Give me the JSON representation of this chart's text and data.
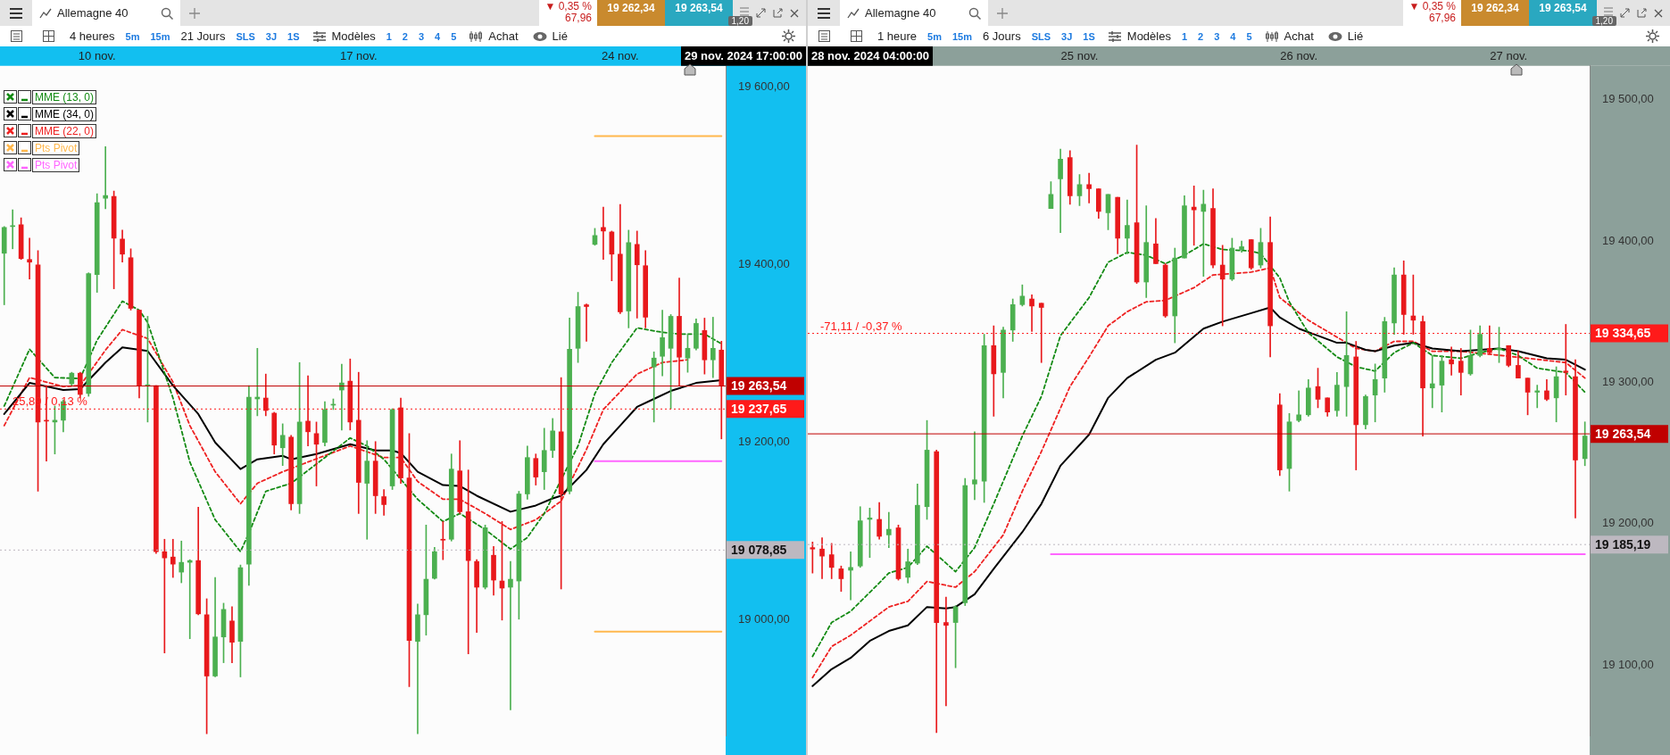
{
  "chart_data": [
    {
      "type": "candlestick",
      "title": "Allemagne 40",
      "categories": [
        null,
        null,
        null,
        null,
        null,
        null,
        null,
        null,
        null,
        null,
        null,
        "10 nov.",
        null,
        null,
        null,
        null,
        null,
        null,
        null,
        null,
        null,
        null,
        null,
        null,
        null,
        null,
        null,
        null,
        null,
        null,
        null,
        null,
        null,
        null,
        null,
        null,
        null,
        null,
        null,
        null,
        null,
        null,
        "17 nov.",
        null,
        null,
        null,
        null,
        null,
        null,
        null,
        null,
        null,
        null,
        null,
        null,
        null,
        null,
        null,
        null,
        null,
        null,
        null,
        null,
        null,
        null,
        null,
        null,
        null,
        null,
        null,
        null,
        null,
        null,
        "24 nov.",
        null,
        null,
        null,
        null,
        null,
        null,
        null,
        null,
        null,
        null,
        null,
        null
      ],
      "ohlc": [
        [
          19413,
          19443,
          19355,
          19442
        ],
        [
          19443,
          19462,
          19418,
          19444
        ],
        [
          19445,
          19453,
          19406,
          19407
        ],
        [
          19406,
          19430,
          19384,
          19403
        ],
        [
          19400,
          19416,
          19145,
          19223
        ],
        [
          19225,
          19264,
          19179,
          19224
        ],
        [
          19223,
          19241,
          19187,
          19225
        ],
        [
          19225,
          19248,
          19212,
          19246
        ],
        [
          19266,
          19279,
          19264,
          19278
        ],
        [
          19278,
          19279,
          19250,
          19254
        ],
        [
          19255,
          19391,
          19252,
          19390
        ],
        [
          19389,
          19480,
          19369,
          19470
        ],
        [
          19475,
          19533,
          19463,
          19478
        ],
        [
          19477,
          19483,
          19373,
          19430
        ],
        [
          19429,
          19439,
          19403,
          19412
        ],
        [
          19408,
          19418,
          19349,
          19351
        ],
        [
          19349,
          19349,
          19250,
          19264
        ],
        [
          19264,
          19342,
          19223,
          19265
        ],
        [
          19264,
          19264,
          19075,
          19077
        ],
        [
          19077,
          19091,
          18963,
          19070
        ],
        [
          19071,
          19091,
          19048,
          19063
        ],
        [
          19054,
          19089,
          19042,
          19065
        ],
        [
          19065,
          19068,
          18979,
          19067
        ],
        [
          19067,
          19127,
          19006,
          19007
        ],
        [
          19006,
          19024,
          18872,
          18937
        ],
        [
          18937,
          19048,
          18936,
          18981
        ],
        [
          18981,
          19019,
          18952,
          19012
        ],
        [
          18999,
          19015,
          18952,
          18975
        ],
        [
          18976,
          19062,
          18936,
          19059
        ],
        [
          19063,
          19264,
          19039,
          19251
        ],
        [
          19249,
          19306,
          19230,
          19251
        ],
        [
          19250,
          19277,
          19230,
          19236
        ],
        [
          19233,
          19234,
          19187,
          19197
        ],
        [
          19194,
          19221,
          19174,
          19208
        ],
        [
          19206,
          19208,
          19124,
          19131
        ],
        [
          19131,
          19290,
          19120,
          19223
        ],
        [
          19224,
          19275,
          19196,
          19212
        ],
        [
          19210,
          19223,
          19151,
          19198
        ],
        [
          19200,
          19246,
          19196,
          19237
        ],
        [
          19242,
          19249,
          19237,
          19243
        ],
        [
          19259,
          19288,
          19214,
          19267
        ],
        [
          19269,
          19294,
          19214,
          19223
        ],
        [
          19225,
          19279,
          19120,
          19155
        ],
        [
          19154,
          19202,
          19091,
          19179
        ],
        [
          19179,
          19201,
          19120,
          19140
        ],
        [
          19139,
          19147,
          19118,
          19130
        ],
        [
          19151,
          19238,
          19147,
          19237
        ],
        [
          19239,
          19250,
          19154,
          19160
        ],
        [
          19160,
          19210,
          18925,
          18977
        ],
        [
          18976,
          19018,
          18872,
          19006
        ],
        [
          19006,
          19107,
          18983,
          19046
        ],
        [
          19047,
          19082,
          19046,
          19077
        ],
        [
          19091,
          19111,
          19068,
          19090
        ],
        [
          19091,
          19187,
          19089,
          19170
        ],
        [
          19168,
          19202,
          19120,
          19122
        ],
        [
          19122,
          19169,
          18962,
          19067
        ],
        [
          19066,
          19068,
          18986,
          19037
        ],
        [
          19037,
          19107,
          19035,
          19104
        ],
        [
          19073,
          19083,
          19028,
          19045
        ],
        [
          19044,
          19111,
          19000,
          19036
        ],
        [
          19037,
          19066,
          18899,
          19046
        ],
        [
          19044,
          19145,
          19001,
          19142
        ],
        [
          19142,
          19196,
          19136,
          19183
        ],
        [
          19182,
          19187,
          19152,
          19161
        ],
        [
          19167,
          19216,
          19147,
          19191
        ],
        [
          19191,
          19227,
          19183,
          19213
        ],
        [
          19212,
          19273,
          19035,
          19142
        ],
        [
          19145,
          19340,
          19142,
          19305
        ],
        [
          19306,
          19369,
          19290,
          19353
        ],
        [
          19355,
          19356,
          19314,
          19353
        ],
        [
          19423,
          19441,
          19422,
          19433
        ],
        [
          19442,
          19465,
          19406,
          19438
        ],
        [
          19437,
          19438,
          19382,
          19412
        ],
        [
          19412,
          19468,
          19345,
          19347
        ],
        [
          19348,
          19439,
          19329,
          19425
        ],
        [
          19423,
          19438,
          19340,
          19400
        ],
        [
          19399,
          19416,
          19329,
          19341
        ],
        [
          19285,
          19302,
          19223,
          19295
        ],
        [
          19297,
          19349,
          19275,
          19318
        ],
        [
          19306,
          19344,
          19238,
          19342
        ],
        [
          19342,
          19385,
          19264,
          19296
        ],
        [
          19295,
          19322,
          19279,
          19306
        ],
        [
          19306,
          19339,
          19304,
          19334
        ],
        [
          19326,
          19340,
          19277,
          19293
        ],
        [
          19293,
          19341,
          19273,
          19306
        ],
        [
          19304,
          19314,
          19204,
          19264
        ]
      ],
      "series": [
        {
          "name": "MME (13, 0)",
          "color": "#138a13",
          "type": "line",
          "line_style": "dashed",
          "values": [
            19241,
            null,
            null,
            19305,
            null,
            null,
            19273,
            null,
            null,
            19272,
            null,
            19315,
            null,
            null,
            19359,
            null,
            19349,
            19335,
            null,
            null,
            19250,
            null,
            19178,
            null,
            null,
            19113,
            null,
            null,
            19077,
            19098,
            null,
            19145,
            null,
            null,
            19154,
            null,
            null,
            null,
            19183,
            null,
            null,
            19205,
            null,
            19196,
            null,
            19181,
            null,
            null,
            null,
            19136,
            null,
            null,
            19111,
            null,
            19120,
            null,
            null,
            19102,
            null,
            null,
            19080,
            null,
            19093,
            null,
            19120,
            null,
            null,
            null,
            19196,
            null,
            19255,
            null,
            19290,
            null,
            null,
            19329,
            null,
            null,
            19324,
            null,
            19322,
            null,
            null,
            19322,
            null,
            19311
          ]
        },
        {
          "name": "MME (34, 0)",
          "color": "#000000",
          "type": "line",
          "line_style": "solid",
          "values": [
            19232,
            null,
            null,
            19267,
            null,
            null,
            null,
            19259,
            null,
            19260,
            null,
            null,
            19290,
            null,
            19307,
            null,
            null,
            19303,
            null,
            null,
            19264,
            null,
            null,
            19232,
            null,
            19200,
            null,
            null,
            19170,
            null,
            19181,
            null,
            null,
            19185,
            19181,
            null,
            null,
            19187,
            null,
            null,
            null,
            19198,
            null,
            null,
            19191,
            null,
            19191,
            19188,
            null,
            19167,
            null,
            null,
            19152,
            null,
            19151,
            null,
            19140,
            null,
            null,
            null,
            19122,
            null,
            null,
            19129,
            null,
            19137,
            19140,
            null,
            null,
            19169,
            null,
            19198,
            null,
            19219,
            null,
            19240,
            null,
            19249,
            null,
            19258,
            null,
            null,
            19267,
            null,
            null,
            19270
          ]
        },
        {
          "name": "MME (22, 0)",
          "color": "#ee2222",
          "type": "line",
          "line_style": "dashed",
          "values": [
            19219,
            null,
            null,
            19273,
            null,
            null,
            null,
            19263,
            null,
            19264,
            null,
            null,
            19304,
            null,
            19327,
            null,
            null,
            19317,
            null,
            null,
            19268,
            null,
            19219,
            null,
            null,
            19167,
            null,
            null,
            19131,
            null,
            19154,
            null,
            null,
            19167,
            null,
            null,
            19178,
            null,
            null,
            null,
            null,
            19196,
            null,
            null,
            null,
            19183,
            null,
            19183,
            null,
            19156,
            null,
            null,
            19136,
            null,
            19136,
            null,
            null,
            19120,
            null,
            null,
            19102,
            null,
            null,
            19113,
            null,
            null,
            19134,
            null,
            null,
            19192,
            null,
            19237,
            null,
            null,
            null,
            19277,
            null,
            null,
            19290,
            null,
            null,
            19293,
            null,
            null,
            null,
            null
          ]
        },
        {
          "name": "Pts Pivot",
          "color": "#ffb84d",
          "type": "line",
          "line_style": "solid",
          "values": [
            null,
            null,
            null,
            null,
            null,
            null,
            null,
            null,
            null,
            null,
            null,
            null,
            null,
            null,
            null,
            null,
            null,
            null,
            null,
            null,
            null,
            null,
            null,
            null,
            null,
            null,
            null,
            null,
            null,
            null,
            null,
            null,
            null,
            null,
            null,
            null,
            null,
            null,
            null,
            null,
            null,
            null,
            null,
            null,
            null,
            null,
            null,
            null,
            null,
            null,
            null,
            null,
            null,
            null,
            null,
            null,
            null,
            null,
            null,
            null,
            null,
            null,
            null,
            null,
            null,
            null,
            null,
            null,
            null,
            null,
            19545,
            19545,
            19545,
            19545,
            19545,
            19545,
            19545,
            19545,
            19545,
            19545,
            19545,
            19545,
            19545,
            19545,
            19545,
            19545
          ]
        },
        {
          "color": "#ffb84d",
          "type": "line",
          "line_style": "solid",
          "values": [
            null,
            null,
            null,
            null,
            null,
            null,
            null,
            null,
            null,
            null,
            null,
            null,
            null,
            null,
            null,
            null,
            null,
            null,
            null,
            null,
            null,
            null,
            null,
            null,
            null,
            null,
            null,
            null,
            null,
            null,
            null,
            null,
            null,
            null,
            null,
            null,
            null,
            null,
            null,
            null,
            null,
            null,
            null,
            null,
            null,
            null,
            null,
            null,
            null,
            null,
            null,
            null,
            null,
            null,
            null,
            null,
            null,
            null,
            null,
            null,
            null,
            null,
            null,
            null,
            null,
            null,
            null,
            null,
            null,
            null,
            18987,
            18987,
            18987,
            18987,
            18987,
            18987,
            18987,
            18987,
            18987,
            18987,
            18987,
            18987,
            18987,
            18987,
            18987,
            18987
          ]
        },
        {
          "name": "Pts Pivot",
          "color": "#ff66ff",
          "type": "line",
          "line_style": "solid",
          "values": [
            null,
            null,
            null,
            null,
            null,
            null,
            null,
            null,
            null,
            null,
            null,
            null,
            null,
            null,
            null,
            null,
            null,
            null,
            null,
            null,
            null,
            null,
            null,
            null,
            null,
            null,
            null,
            null,
            null,
            null,
            null,
            null,
            null,
            null,
            null,
            null,
            null,
            null,
            null,
            null,
            null,
            null,
            null,
            null,
            null,
            null,
            null,
            null,
            null,
            null,
            null,
            null,
            null,
            null,
            null,
            null,
            null,
            null,
            null,
            null,
            null,
            null,
            null,
            null,
            null,
            null,
            null,
            null,
            null,
            null,
            19179,
            19179,
            19179,
            19179,
            19179,
            19179,
            19179,
            19179,
            19179,
            19179,
            19179,
            19179,
            19179,
            19179,
            19179,
            19179
          ]
        }
      ],
      "ylim": [
        18870,
        19624
      ],
      "yticks": [
        {
          "value": 19000,
          "label": "19 000,00"
        },
        {
          "value": 19200,
          "label": "19 200,00"
        },
        {
          "value": 19400,
          "label": "19 400,00"
        },
        {
          "value": 19600,
          "label": "19 600,00"
        }
      ],
      "legend": "top left",
      "ref_lines": [
        {
          "axis": "y",
          "value": 19263.54,
          "label": "19 263,54",
          "color": "#c00000",
          "line_style": "solid"
        },
        {
          "axis": "y",
          "value": 19237.65,
          "label": "19 237,65",
          "color": "#ff1a1a",
          "line_style": "dotted"
        },
        {
          "axis": "y",
          "value": 19078.85,
          "label": "19 078,85",
          "color": "#bdb8c0",
          "line_style": "dotted"
        }
      ],
      "annotations": [
        "4 heures",
        "5m",
        "15m",
        "21 Jours",
        "SLS",
        "3J",
        "1S",
        "Modèles",
        "1",
        "2",
        "3",
        "4",
        "5",
        "Achat",
        "Lié",
        "▼ 0,35 %",
        "67,96",
        "19 262,34",
        "19 263,54",
        "1,20",
        "29 nov. 2024 17:00:00",
        "25,89 / 0,13 %"
      ]
    },
    {
      "type": "candlestick",
      "title": "Allemagne 40",
      "categories": [
        null,
        null,
        null,
        null,
        null,
        null,
        null,
        null,
        null,
        null,
        null,
        null,
        null,
        null,
        null,
        null,
        null,
        null,
        null,
        null,
        null,
        null,
        null,
        null,
        null,
        null,
        null,
        null,
        "25 nov.",
        null,
        null,
        null,
        null,
        null,
        null,
        null,
        null,
        null,
        null,
        null,
        null,
        null,
        null,
        null,
        null,
        null,
        null,
        null,
        null,
        null,
        null,
        "26 nov.",
        null,
        null,
        null,
        null,
        null,
        null,
        null,
        null,
        null,
        null,
        null,
        null,
        null,
        null,
        null,
        null,
        null,
        null,
        null,
        null,
        null,
        "27 nov.",
        null,
        null,
        null,
        null,
        null,
        null,
        null,
        null
      ],
      "ohlc": [
        [
          19183,
          19187,
          19165,
          19182
        ],
        [
          19182,
          19190,
          19161,
          19177
        ],
        [
          19178,
          19186,
          19161,
          19169
        ],
        [
          19168,
          19170,
          19152,
          19161
        ],
        [
          19167,
          19180,
          19146,
          19169
        ],
        [
          19170,
          19212,
          19169,
          19202
        ],
        [
          19203,
          19211,
          19176,
          19204
        ],
        [
          19203,
          19215,
          19189,
          19191
        ],
        [
          19192,
          19208,
          19183,
          19196
        ],
        [
          19197,
          19199,
          19160,
          19161
        ],
        [
          19162,
          19182,
          19158,
          19173
        ],
        [
          19172,
          19228,
          19171,
          19213
        ],
        [
          19212,
          19273,
          19203,
          19252
        ],
        [
          19251,
          19252,
          19052,
          19130
        ],
        [
          19130,
          19148,
          19071,
          19128
        ],
        [
          19130,
          19142,
          19098,
          19141
        ],
        [
          19144,
          19232,
          19142,
          19227
        ],
        [
          19228,
          19265,
          19217,
          19231
        ],
        [
          19230,
          19334,
          19215,
          19326
        ],
        [
          19326,
          19340,
          19276,
          19306
        ],
        [
          19307,
          19339,
          19289,
          19337
        ],
        [
          19337,
          19359,
          19329,
          19355
        ],
        [
          19355,
          19369,
          19354,
          19361
        ],
        [
          19359,
          19362,
          19336,
          19354
        ],
        [
          19356,
          19356,
          19314,
          19353
        ],
        [
          19423,
          19442,
          19423,
          19433
        ],
        [
          19444,
          19465,
          19406,
          19458
        ],
        [
          19459,
          19464,
          19426,
          19432
        ],
        [
          19432,
          19447,
          19425,
          19440
        ],
        [
          19440,
          19448,
          19427,
          19437
        ],
        [
          19437,
          19437,
          19416,
          19421
        ],
        [
          19420,
          19433,
          19408,
          19433
        ],
        [
          19431,
          19431,
          19391,
          19402
        ],
        [
          19402,
          19429,
          19391,
          19411
        ],
        [
          19413,
          19468,
          19370,
          19371
        ],
        [
          19371,
          19425,
          19360,
          19399
        ],
        [
          19398,
          19416,
          19384,
          19384
        ],
        [
          19383,
          19384,
          19346,
          19347
        ],
        [
          19347,
          19395,
          19328,
          19388
        ],
        [
          19388,
          19432,
          19388,
          19425
        ],
        [
          19424,
          19439,
          19397,
          19422
        ],
        [
          19421,
          19436,
          19375,
          19426
        ],
        [
          19423,
          19437,
          19381,
          19383
        ],
        [
          19383,
          19397,
          19340,
          19373
        ],
        [
          19373,
          19402,
          19372,
          19395
        ],
        [
          19394,
          19400,
          19392,
          19396
        ],
        [
          19401,
          19401,
          19380,
          19381
        ],
        [
          19383,
          19409,
          19381,
          19399
        ],
        [
          19399,
          19417,
          19318,
          19340
        ],
        [
          19284,
          19292,
          19234,
          19238
        ],
        [
          19239,
          19278,
          19223,
          19272
        ],
        [
          19273,
          19294,
          19272,
          19277
        ],
        [
          19277,
          19302,
          19276,
          19296
        ],
        [
          19297,
          19310,
          19282,
          19288
        ],
        [
          19289,
          19289,
          19276,
          19279
        ],
        [
          19280,
          19307,
          19276,
          19298
        ],
        [
          19297,
          19350,
          19276,
          19319
        ],
        [
          19318,
          19329,
          19238,
          19270
        ],
        [
          19270,
          19291,
          19267,
          19290
        ],
        [
          19291,
          19313,
          19272,
          19302
        ],
        [
          19303,
          19346,
          19293,
          19343
        ],
        [
          19342,
          19381,
          19334,
          19376
        ],
        [
          19376,
          19386,
          19334,
          19348
        ],
        [
          19347,
          19376,
          19334,
          19344
        ],
        [
          19343,
          19347,
          19262,
          19296
        ],
        [
          19296,
          19319,
          19282,
          19299
        ],
        [
          19298,
          19319,
          19279,
          19315
        ],
        [
          19316,
          19325,
          19305,
          19313
        ],
        [
          19315,
          19324,
          19291,
          19307
        ],
        [
          19306,
          19337,
          19305,
          19319
        ],
        [
          19319,
          19340,
          19318,
          19334
        ],
        [
          19324,
          19340,
          19320,
          19321
        ],
        [
          19323,
          19339,
          19314,
          19324
        ],
        [
          19326,
          19326,
          19311,
          19312
        ],
        [
          19312,
          19322,
          19303,
          19303
        ],
        [
          19303,
          19303,
          19277,
          19293
        ],
        [
          19293,
          19298,
          19282,
          19294
        ],
        [
          19294,
          19302,
          19287,
          19288
        ],
        [
          19289,
          19311,
          19272,
          19304
        ],
        [
          19308,
          19341,
          19291,
          19307
        ],
        [
          19304,
          19316,
          19204,
          19245
        ],
        [
          19246,
          19272,
          19241,
          19262
        ]
      ],
      "series": [
        {
          "color": "#138a13",
          "type": "line",
          "line_style": "dashed",
          "values": [
            19106,
            null,
            19130,
            null,
            19138,
            null,
            null,
            19158,
            19165,
            null,
            19169,
            null,
            19184,
            null,
            null,
            19166,
            null,
            19183,
            null,
            19214,
            null,
            null,
            19262,
            null,
            19290,
            null,
            19333,
            null,
            null,
            19360,
            null,
            19385,
            null,
            19392,
            null,
            19390,
            null,
            19384,
            null,
            19390,
            null,
            19398,
            null,
            19394,
            null,
            null,
            19393,
            19391,
            null,
            19374,
            19357,
            null,
            19335,
            null,
            null,
            19318,
            null,
            19311,
            null,
            19308,
            null,
            19321,
            null,
            19328,
            null,
            19319,
            null,
            null,
            19317,
            null,
            19321,
            null,
            19324,
            null,
            19319,
            null,
            19310,
            null,
            null,
            19307,
            null,
            19293
          ]
        },
        {
          "color": "#000000",
          "type": "line",
          "line_style": "solid",
          "values": [
            19085,
            null,
            19097,
            null,
            19105,
            null,
            19117,
            null,
            19124,
            null,
            19128,
            null,
            19141,
            null,
            19140,
            19141,
            null,
            19150,
            null,
            19168,
            null,
            null,
            19194,
            null,
            19214,
            null,
            19241,
            null,
            null,
            19263,
            null,
            19289,
            null,
            19303,
            null,
            null,
            19316,
            null,
            19321,
            null,
            null,
            19338,
            null,
            19343,
            null,
            null,
            19349,
            null,
            19353,
            19346,
            null,
            19338,
            null,
            19333,
            null,
            19328,
            19328,
            null,
            19323,
            19322,
            null,
            19326,
            null,
            19328,
            null,
            19324,
            null,
            null,
            19322,
            null,
            null,
            null,
            19324,
            null,
            19322,
            null,
            null,
            19317,
            null,
            19316,
            null,
            19309
          ]
        },
        {
          "color": "#ee2222",
          "type": "line",
          "line_style": "dashed",
          "values": [
            19091,
            null,
            19113,
            null,
            19121,
            null,
            null,
            null,
            19141,
            null,
            19145,
            null,
            19159,
            null,
            null,
            19155,
            null,
            19166,
            null,
            null,
            19192,
            null,
            19223,
            null,
            19251,
            null,
            null,
            19297,
            null,
            19318,
            null,
            19340,
            null,
            19350,
            null,
            19357,
            null,
            19358,
            null,
            null,
            19367,
            null,
            19376,
            null,
            19377,
            null,
            19378,
            null,
            19381,
            19360,
            null,
            null,
            19344,
            null,
            null,
            19332,
            null,
            19324,
            null,
            19322,
            null,
            19329,
            null,
            19329,
            null,
            19322,
            null,
            null,
            19322,
            null,
            null,
            null,
            null,
            null,
            null,
            19317,
            null,
            null,
            null,
            19314,
            null,
            19303
          ]
        },
        {
          "color": "#ff66ff",
          "type": "line",
          "line_style": "solid",
          "values": [
            null,
            null,
            null,
            null,
            null,
            null,
            null,
            null,
            null,
            null,
            null,
            null,
            null,
            null,
            null,
            null,
            null,
            null,
            null,
            null,
            null,
            null,
            null,
            null,
            null,
            19178.4,
            19178.4,
            19178.4,
            19178.4,
            19178.4,
            19178.4,
            19178.4,
            19178.4,
            19178.4,
            19178.4,
            19178.4,
            19178.4,
            19178.4,
            19178.4,
            19178.4,
            19178.4,
            19178.4,
            19178.4,
            19178.4,
            19178.4,
            19178.4,
            19178.4,
            19178.4,
            19178.4,
            19178.4,
            19178.4,
            19178.4,
            19178.4,
            19178.4,
            19178.4,
            19178.4,
            19178.4,
            19178.4,
            19178.4,
            19178.4,
            19178.4,
            19178.4,
            19178.4,
            19178.4,
            19178.4,
            19178.4,
            19178.4,
            19178.4,
            19178.4,
            19178.4,
            19178.4,
            19178.4,
            19178.4,
            19178.4,
            19178.4,
            19178.4,
            19178.4,
            19178.4,
            19178.4,
            19178.4,
            19178.4,
            19178.4
          ]
        }
      ],
      "ylim": [
        19050,
        19524
      ],
      "yticks": [
        {
          "value": 19100,
          "label": "19 100,00"
        },
        {
          "value": 19200,
          "label": "19 200,00"
        },
        {
          "value": 19300,
          "label": "19 300,00"
        },
        {
          "value": 19400,
          "label": "19 400,00"
        },
        {
          "value": 19500,
          "label": "19 500,00"
        }
      ],
      "ref_lines": [
        {
          "axis": "y",
          "value": 19334.65,
          "label": "19 334,65",
          "color": "#ff1a1a",
          "line_style": "dotted"
        },
        {
          "axis": "y",
          "value": 19263.54,
          "label": "19 263,54",
          "color": "#c00000",
          "line_style": "solid"
        },
        {
          "axis": "y",
          "value": 19185.19,
          "label": "19 185,19",
          "color": "#bdb8c0",
          "line_style": "dotted"
        }
      ],
      "annotations": [
        "1 heure",
        "5m",
        "15m",
        "6 Jours",
        "SLS",
        "3J",
        "1S",
        "Modèles",
        "1",
        "2",
        "3",
        "4",
        "5",
        "Achat",
        "Lié",
        "▼ 0,35 %",
        "67,96",
        "19 262,34",
        "19 263,54",
        "1,20",
        "28 nov. 2024 04:00:00",
        "-71,11 / -0,37 %"
      ]
    }
  ]
}
